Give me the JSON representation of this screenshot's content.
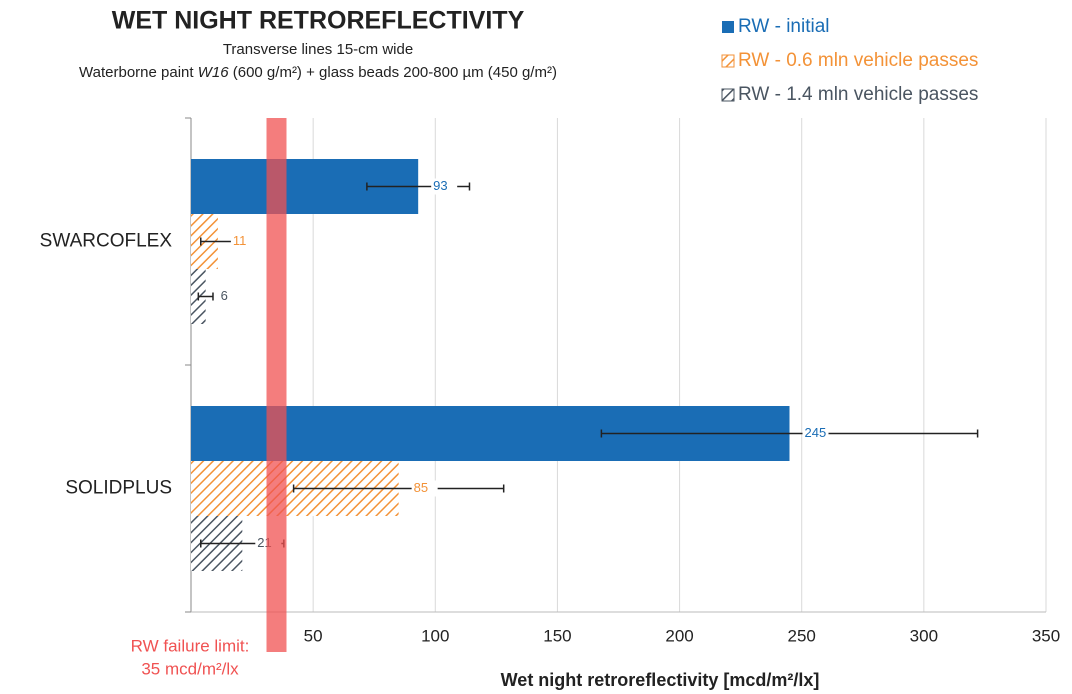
{
  "chart_data": {
    "type": "bar",
    "orientation": "horizontal",
    "title": "WET NIGHT RETROREFLECTIVITY",
    "subtitle": [
      "Transverse lines 15-cm wide",
      [
        "Waterborne paint ",
        "W16",
        " (600 g/m²) + glass beads 200-800 µm (450 g/m²)"
      ]
    ],
    "categories": [
      "SWARCOFLEX",
      "SOLIDPLUS"
    ],
    "series": [
      {
        "name": "RW - initial",
        "color": "#1a6db5",
        "pattern": "solid",
        "values": [
          93,
          245
        ],
        "errors": [
          21,
          77
        ]
      },
      {
        "name": "RW - 0.6 mln vehicle passes",
        "color": "#f39237",
        "pattern": "hatch",
        "values": [
          11,
          85
        ],
        "errors": [
          7,
          43
        ]
      },
      {
        "name": "RW - 1.4 mln vehicle passes",
        "color": "#4a5561",
        "pattern": "hatch",
        "values": [
          6,
          21
        ],
        "errors": [
          3,
          17
        ]
      }
    ],
    "xlim": [
      0,
      350
    ],
    "xticks": [
      50,
      100,
      150,
      200,
      250,
      300,
      350
    ],
    "xlabel": "Wet night retroreflectivity [mcd/m²/lx]",
    "grid": true,
    "legend": "top-right",
    "threshold": {
      "value": 35,
      "color": "#f05252",
      "label": [
        "RW failure limit:",
        "35 mcd/m²/lx"
      ]
    }
  }
}
